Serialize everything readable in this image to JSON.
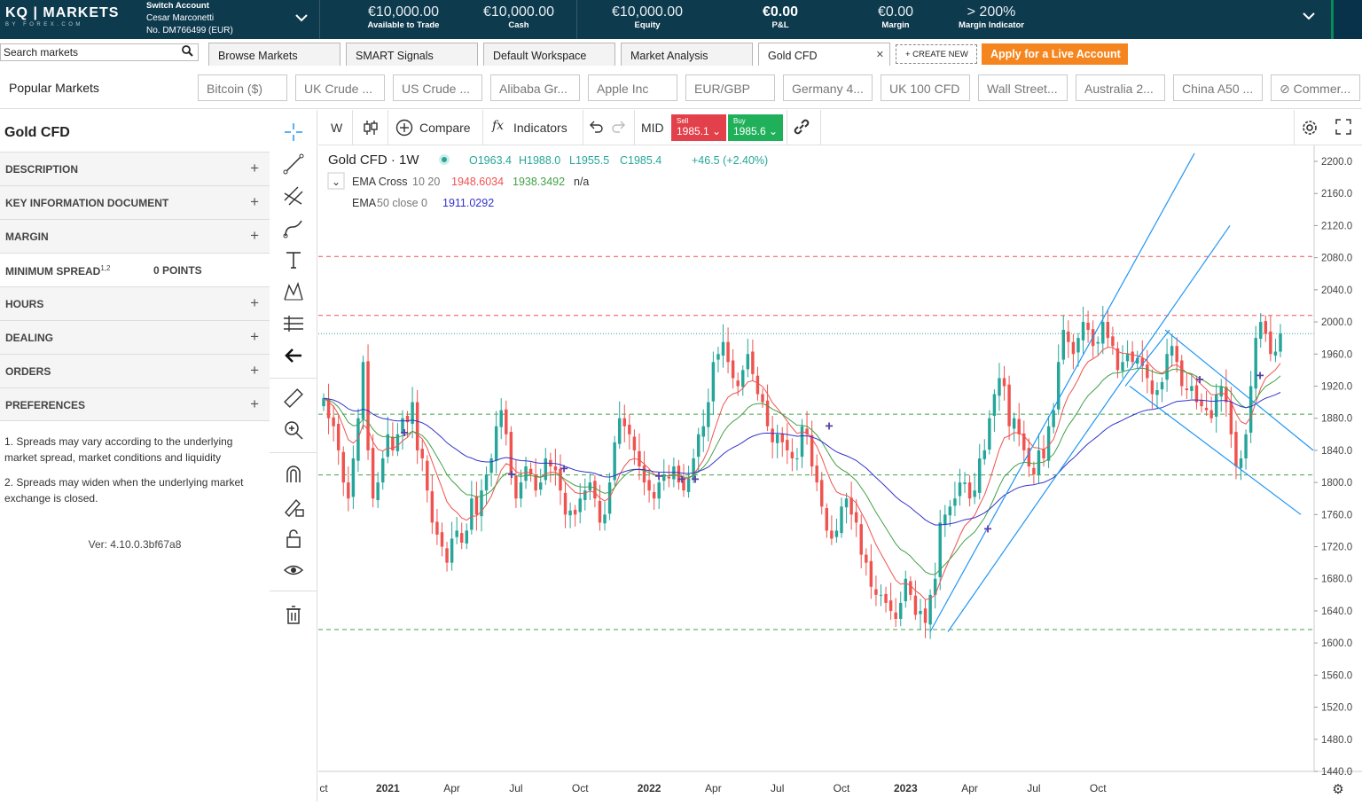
{
  "topbar": {
    "logo_main": "KQ | MARKETS",
    "logo_sub": "BY FOREX.COM",
    "switch_account": "Switch Account",
    "account_name": "Cesar Marconetti",
    "account_no": "No. DM766499 (EUR)",
    "metrics": [
      {
        "value": "€10,000.00",
        "label": "Available to Trade"
      },
      {
        "value": "€10,000.00",
        "label": "Cash"
      },
      {
        "value": "€10,000.00",
        "label": "Equity"
      },
      {
        "value": "€0.00",
        "label": "P&L"
      },
      {
        "value": "€0.00",
        "label": "Margin"
      },
      {
        "value": "> 200%",
        "label": "Margin Indicator"
      }
    ]
  },
  "tabs": {
    "search_placeholder": "Search markets",
    "items": [
      "Browse Markets",
      "SMART Signals",
      "Default Workspace",
      "Market Analysis",
      "Gold CFD"
    ],
    "create_new": "+ CREATE NEW",
    "live_account": "Apply for a Live Account"
  },
  "popular": {
    "title": "Popular Markets",
    "items": [
      "Bitcoin ($)",
      "UK Crude ...",
      "US Crude ...",
      "Alibaba Gr...",
      "Apple Inc",
      "EUR/GBP",
      "Germany 4...",
      "UK 100 CFD",
      "Wall Street...",
      "Australia 2...",
      "China A50 ...",
      "⊘ Commer..."
    ]
  },
  "left": {
    "market_title": "Gold CFD",
    "sections": [
      "DESCRIPTION",
      "KEY INFORMATION DOCUMENT",
      "MARGIN"
    ],
    "spread_label": "MINIMUM SPREAD",
    "spread_sup": "1,2",
    "spread_value": "0 POINTS",
    "sections2": [
      "HOURS",
      "DEALING",
      "ORDERS",
      "PREFERENCES"
    ],
    "note1": "1. Spreads may vary according to the underlying market spread, market conditions and liquidity",
    "note2": "2. Spreads may widen when the underlying market exchange is closed.",
    "version": "Ver: 4.10.0.3bf67a8"
  },
  "chart_toolbar": {
    "interval": "W",
    "compare": "Compare",
    "indicators": "Indicators",
    "price_type": "MID",
    "sell_label": "Sell",
    "sell_price": "1985.1",
    "buy_label": "Buy",
    "buy_price": "1985.6"
  },
  "legend": {
    "symbol": "Gold CFD · 1W",
    "o": "O1963.4",
    "h": "H1988.0",
    "l": "L1955.5",
    "c": "C1985.4",
    "chg": "+46.5 (+2.40%)",
    "ema_cross": "EMA Cross",
    "ema_cross_params": "10 20",
    "ema_cross_v1": "1948.6034",
    "ema_cross_v2": "1938.3492",
    "ema_cross_v3": "n/a",
    "ema50": "EMA",
    "ema50_params": "50 close 0",
    "ema50_v": "1911.0292"
  },
  "colors": {
    "up": "#26a69a",
    "down": "#ef5350",
    "ema_fast": "#ef5350",
    "ema_slow": "#43a047",
    "ema50": "#3333cc",
    "channel": "#2196f3"
  },
  "chart_data": {
    "type": "candlestick",
    "interval": "1W",
    "ylim": [
      1440,
      2200
    ],
    "y_ticks": [
      2200.0,
      2160.0,
      2120.0,
      2080.0,
      2040.0,
      2000.0,
      1960.0,
      1920.0,
      1880.0,
      1840.0,
      1800.0,
      1760.0,
      1720.0,
      1680.0,
      1640.0,
      1600.0,
      1560.0,
      1520.0,
      1480.0,
      1440.0
    ],
    "x_ticks": [
      "ct",
      "2021",
      "Apr",
      "Jul",
      "Oct",
      "2022",
      "Apr",
      "Jul",
      "Oct",
      "2023",
      "Apr",
      "Jul",
      "Oct"
    ],
    "price_labels": [
      {
        "value": 2081.5,
        "style": "red-dashed"
      },
      {
        "value": 2008.0,
        "style": "red-dashed"
      },
      {
        "value": 1985.4,
        "style": "last"
      },
      {
        "value": 1885.1,
        "style": "green-dashed"
      },
      {
        "value": 1809.4,
        "style": "green-dashed"
      },
      {
        "value": 1616.8,
        "style": "green-dashed"
      }
    ],
    "closes": [
      1905,
      1880,
      1870,
      1840,
      1800,
      1780,
      1830,
      1880,
      1950,
      1840,
      1780,
      1800,
      1830,
      1860,
      1840,
      1860,
      1880,
      1875,
      1900,
      1840,
      1830,
      1790,
      1750,
      1735,
      1720,
      1700,
      1730,
      1740,
      1725,
      1740,
      1780,
      1760,
      1790,
      1810,
      1830,
      1870,
      1890,
      1860,
      1810,
      1780,
      1800,
      1820,
      1810,
      1790,
      1800,
      1830,
      1820,
      1815,
      1790,
      1760,
      1765,
      1760,
      1780,
      1790,
      1800,
      1780,
      1750,
      1760,
      1800,
      1850,
      1880,
      1870,
      1860,
      1840,
      1820,
      1800,
      1790,
      1780,
      1800,
      1810,
      1805,
      1820,
      1800,
      1790,
      1805,
      1830,
      1860,
      1870,
      1900,
      1950,
      1960,
      1975,
      1950,
      1930,
      1920,
      1940,
      1960,
      1935,
      1910,
      1900,
      1870,
      1850,
      1860,
      1850,
      1840,
      1830,
      1830,
      1870,
      1860,
      1820,
      1800,
      1770,
      1740,
      1730,
      1740,
      1770,
      1780,
      1760,
      1750,
      1710,
      1700,
      1670,
      1660,
      1660,
      1650,
      1640,
      1630,
      1650,
      1680,
      1660,
      1635,
      1640,
      1625,
      1660,
      1680,
      1750,
      1760,
      1770,
      1780,
      1800,
      1800,
      1780,
      1790,
      1830,
      1840,
      1880,
      1910,
      1930,
      1920,
      1870,
      1880,
      1860,
      1840,
      1820,
      1810,
      1840,
      1830,
      1870,
      1890,
      1950,
      1990,
      1975,
      1960,
      1980,
      2000,
      1990,
      1970,
      1975,
      2000,
      1980,
      1970,
      1940,
      1950,
      1960,
      1950,
      1955,
      1945,
      1930,
      1910,
      1915,
      1925,
      1960,
      1970,
      1950,
      1920,
      1915,
      1920,
      1900,
      1895,
      1890,
      1880,
      1910,
      1920,
      1900,
      1860,
      1820,
      1830,
      1860,
      1920,
      1980,
      2000,
      1985,
      1960,
      1963,
      1985.4
    ]
  }
}
